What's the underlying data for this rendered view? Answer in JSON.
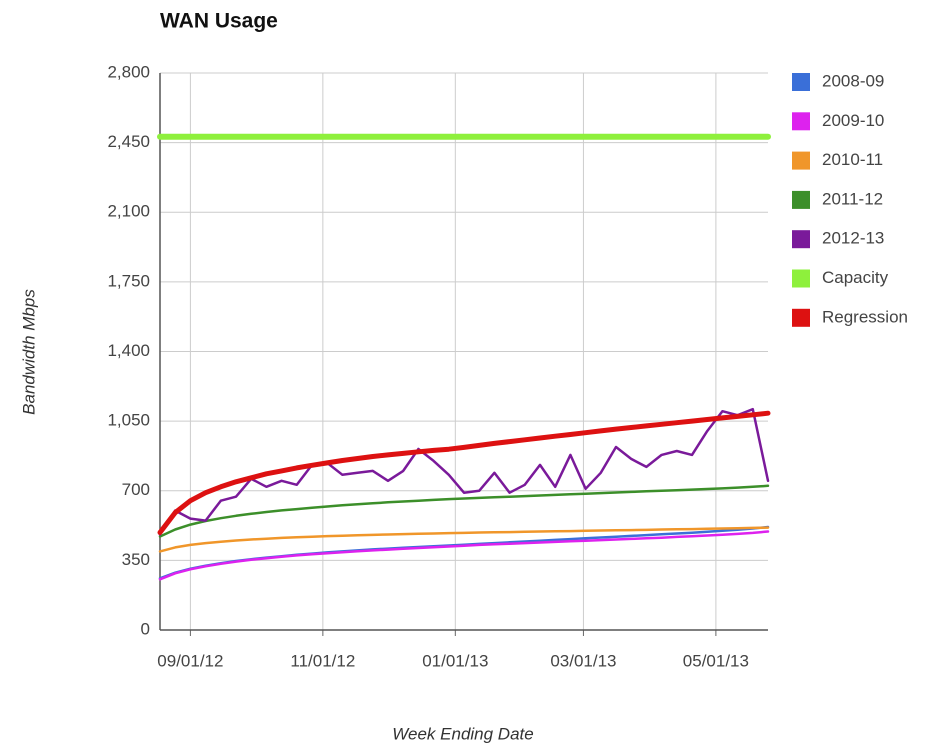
{
  "chart_data": {
    "type": "line",
    "title": "WAN Usage",
    "x_label": "Week Ending Date",
    "y_label": "Bandwidth Mbps",
    "x": [
      "08/18/12",
      "08/25/12",
      "09/01/12",
      "09/08/12",
      "09/15/12",
      "09/22/12",
      "09/29/12",
      "10/06/12",
      "10/13/12",
      "10/20/12",
      "10/27/12",
      "11/03/12",
      "11/10/12",
      "11/17/12",
      "11/24/12",
      "12/01/12",
      "12/08/12",
      "12/15/12",
      "12/22/12",
      "12/29/12",
      "01/05/13",
      "01/12/13",
      "01/19/13",
      "01/26/13",
      "02/02/13",
      "02/09/13",
      "02/16/13",
      "02/23/13",
      "03/02/13",
      "03/09/13",
      "03/16/13",
      "03/23/13",
      "03/30/13",
      "04/06/13",
      "04/13/13",
      "04/20/13",
      "04/27/13",
      "05/04/13",
      "05/11/13",
      "05/18/13",
      "05/25/13"
    ],
    "xlim": [
      "08/18/12",
      "05/25/13"
    ],
    "xticks": [
      "09/01/12",
      "11/01/12",
      "01/01/13",
      "03/01/13",
      "05/01/13"
    ],
    "ylim": [
      0,
      2800
    ],
    "yticks": [
      0,
      350,
      700,
      {
        "value": 1050,
        "label": "1,050"
      },
      {
        "value": 1400,
        "label": "1,400"
      },
      {
        "value": 1750,
        "label": "1,750"
      },
      {
        "value": 2100,
        "label": "2,100"
      },
      {
        "value": 2450,
        "label": "2,450"
      },
      {
        "value": 2800,
        "label": "2,800"
      }
    ],
    "grid": true,
    "legend": "right",
    "series": [
      {
        "name": "2008-09",
        "color": "#3a6fd8",
        "values": [
          260,
          288,
          308,
          323,
          336,
          347,
          356,
          364,
          371,
          378,
          384,
          390,
          395,
          400,
          405,
          409,
          413,
          417,
          421,
          425,
          429,
          433,
          437,
          441,
          445,
          449,
          453,
          457,
          461,
          465,
          469,
          473,
          477,
          481,
          485,
          489,
          494,
          499,
          504,
          510,
          518
        ]
      },
      {
        "name": "2009-10",
        "color": "#dd22ee",
        "values": [
          255,
          285,
          305,
          320,
          333,
          344,
          353,
          361,
          368,
          375,
          381,
          386,
          391,
          396,
          400,
          404,
          408,
          412,
          416,
          420,
          424,
          428,
          431,
          434,
          437,
          440,
          443,
          446,
          449,
          452,
          455,
          458,
          461,
          464,
          468,
          471,
          475,
          479,
          483,
          488,
          495
        ]
      },
      {
        "name": "2010-11",
        "color": "#f0962a",
        "values": [
          395,
          415,
          428,
          437,
          444,
          450,
          455,
          459,
          463,
          466,
          469,
          472,
          474,
          476,
          478,
          480,
          482,
          484,
          485,
          487,
          488,
          490,
          491,
          492,
          494,
          495,
          496,
          497,
          499,
          500,
          501,
          502,
          503,
          505,
          506,
          507,
          509,
          510,
          511,
          513,
          515
        ]
      },
      {
        "name": "2011-12",
        "color": "#3c8f2a",
        "values": [
          470,
          505,
          530,
          548,
          562,
          574,
          584,
          593,
          601,
          608,
          615,
          621,
          627,
          632,
          637,
          642,
          646,
          650,
          654,
          658,
          661,
          664,
          667,
          670,
          673,
          676,
          679,
          682,
          685,
          688,
          691,
          694,
          697,
          700,
          703,
          706,
          709,
          712,
          716,
          720,
          725
        ]
      },
      {
        "name": "2012-13",
        "color": "#7a1a9a",
        "values": [
          480,
          600,
          560,
          550,
          650,
          670,
          760,
          720,
          750,
          730,
          830,
          840,
          780,
          790,
          800,
          750,
          800,
          910,
          850,
          780,
          690,
          700,
          790,
          690,
          730,
          830,
          720,
          880,
          710,
          790,
          920,
          860,
          820,
          880,
          900,
          880,
          1000,
          1100,
          1080,
          1110,
          750
        ]
      },
      {
        "name": "Capacity",
        "color": "#8ef03c",
        "values": [
          2480,
          2480,
          2480,
          2480,
          2480,
          2480,
          2480,
          2480,
          2480,
          2480,
          2480,
          2480,
          2480,
          2480,
          2480,
          2480,
          2480,
          2480,
          2480,
          2480,
          2480,
          2480,
          2480,
          2480,
          2480,
          2480,
          2480,
          2480,
          2480,
          2480,
          2480,
          2480,
          2480,
          2480,
          2480,
          2480,
          2480,
          2480,
          2480,
          2480,
          2480
        ]
      },
      {
        "name": "Regression",
        "color": "#dd1111",
        "values": [
          490,
          590,
          650,
          690,
          720,
          745,
          765,
          785,
          800,
          815,
          828,
          840,
          852,
          862,
          872,
          880,
          888,
          896,
          903,
          909,
          918,
          928,
          938,
          947,
          956,
          965,
          974,
          983,
          992,
          1001,
          1010,
          1018,
          1026,
          1034,
          1042,
          1050,
          1058,
          1066,
          1074,
          1082,
          1090
        ]
      }
    ]
  }
}
